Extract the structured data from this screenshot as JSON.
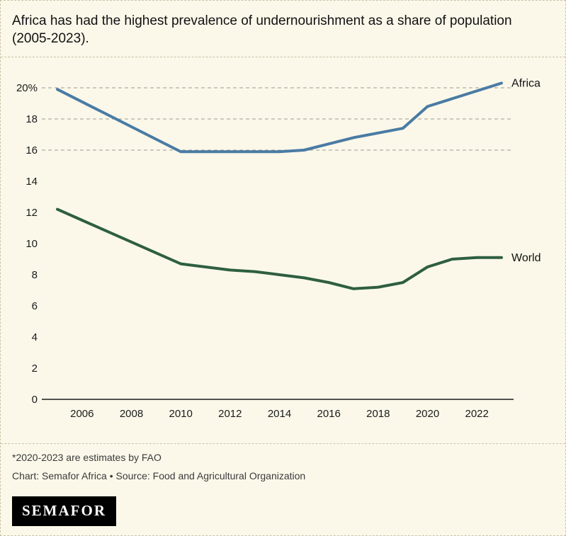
{
  "header": {
    "title": "Africa has had the highest prevalence of undernourishment as a share of population (2005-2023)."
  },
  "footer": {
    "note": "*2020-2023 are estimates by FAO",
    "credit": "Chart: Semafor Africa • Source: Food and Agricultural Organization",
    "logo_text": "SEMAFOR"
  },
  "colors": {
    "background": "#fbf8ea",
    "border": "#ccc3a7",
    "africa_line": "#4a7ba3",
    "world_line": "#2e5f3e",
    "grid": "#9b9b93",
    "axis": "#1a1a1a",
    "text": "#1a1a1a"
  },
  "chart_data": {
    "type": "line",
    "title": "Africa has had the highest prevalence of undernourishment as a share of population (2005-2023).",
    "xlabel": "",
    "ylabel": "",
    "legend_position": "line-end-labels",
    "grid": "dashed-horizontal-top-only",
    "x": [
      2005,
      2006,
      2007,
      2008,
      2009,
      2010,
      2011,
      2012,
      2013,
      2014,
      2015,
      2016,
      2017,
      2018,
      2019,
      2020,
      2021,
      2022,
      2023
    ],
    "series": [
      {
        "name": "Africa",
        "color_key": "africa_line",
        "values": [
          19.9,
          19.1,
          18.3,
          17.5,
          16.7,
          15.9,
          15.9,
          15.9,
          15.9,
          15.9,
          16.0,
          16.4,
          16.8,
          17.1,
          17.4,
          18.8,
          19.3,
          19.8,
          20.3
        ]
      },
      {
        "name": "World",
        "color_key": "world_line",
        "values": [
          12.2,
          11.5,
          10.8,
          10.1,
          9.4,
          8.7,
          8.5,
          8.3,
          8.2,
          8.0,
          7.8,
          7.5,
          7.1,
          7.2,
          7.5,
          8.5,
          9.0,
          9.1,
          9.1
        ]
      }
    ],
    "x_ticks": [
      2006,
      2008,
      2010,
      2012,
      2014,
      2016,
      2018,
      2020,
      2022
    ],
    "y_ticks": [
      {
        "value": 0,
        "label": "0"
      },
      {
        "value": 2,
        "label": "2"
      },
      {
        "value": 4,
        "label": "4"
      },
      {
        "value": 6,
        "label": "6"
      },
      {
        "value": 8,
        "label": "8"
      },
      {
        "value": 10,
        "label": "10"
      },
      {
        "value": 12,
        "label": "12"
      },
      {
        "value": 14,
        "label": "14"
      },
      {
        "value": 16,
        "label": "16"
      },
      {
        "value": 18,
        "label": "18"
      },
      {
        "value": 20,
        "label": "20%"
      }
    ],
    "gridline_values": [
      16,
      18,
      20
    ],
    "x_range": [
      2005,
      2023
    ],
    "y_range": [
      0,
      21
    ]
  }
}
